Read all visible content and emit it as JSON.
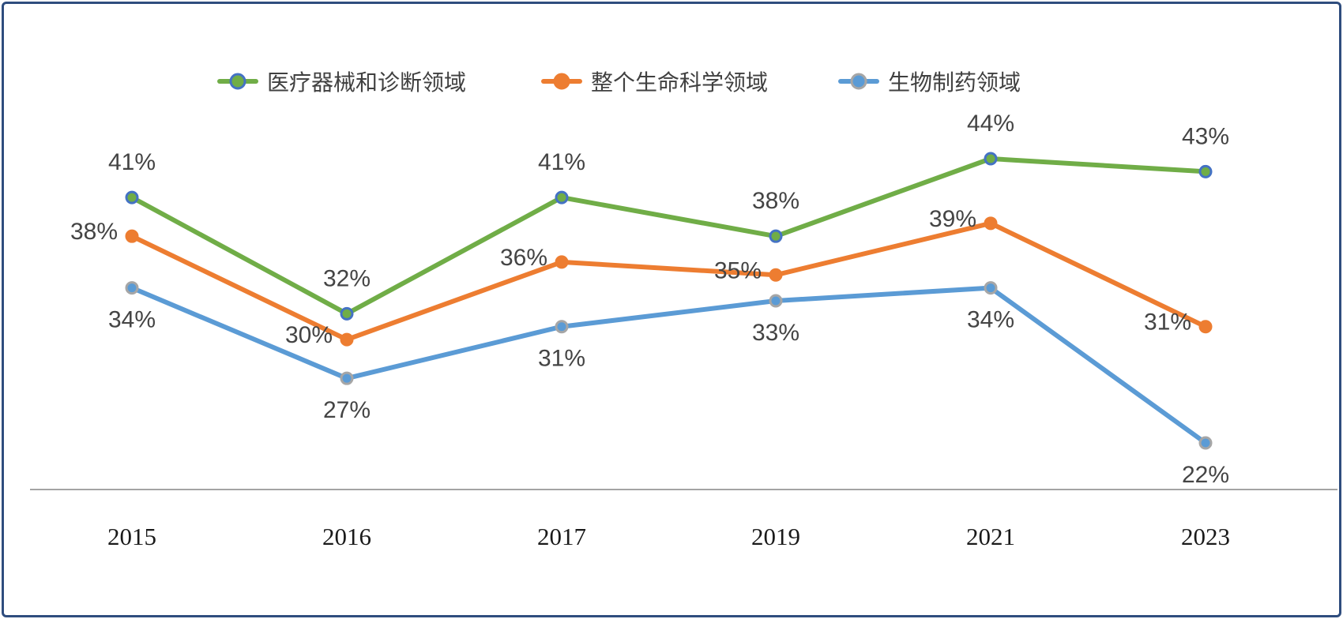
{
  "chart_data": {
    "type": "line",
    "categories": [
      "2015",
      "2016",
      "2017",
      "2019",
      "2021",
      "2023"
    ],
    "series": [
      {
        "name": "医疗器械和诊断领域",
        "values": [
          41,
          32,
          41,
          38,
          44,
          43
        ],
        "color": "#70AD47",
        "marker_fill": "#70AD47",
        "marker_stroke": "#4472C4",
        "label_position": "above"
      },
      {
        "name": "整个生命科学领域",
        "values": [
          38,
          30,
          36,
          35,
          39,
          31
        ],
        "color": "#ED7D31",
        "marker_fill": "#ED7D31",
        "marker_stroke": "#ED7D31",
        "label_position": "left"
      },
      {
        "name": "生物制药领域",
        "values": [
          34,
          27,
          31,
          33,
          34,
          22
        ],
        "color": "#5B9BD5",
        "marker_fill": "#5B9BD5",
        "marker_stroke": "#A6A6A6",
        "label_position": "below"
      }
    ],
    "value_suffix": "%",
    "title": "",
    "xlabel": "",
    "ylabel": "",
    "ylim": [
      15,
      48
    ],
    "grid": false,
    "legend_position": "top"
  },
  "frame": {
    "border_color": "#2F4D7E",
    "axis_line_color": "#858585",
    "data_label_color": "#444444",
    "axis_label_color": "#1a1a1a"
  }
}
